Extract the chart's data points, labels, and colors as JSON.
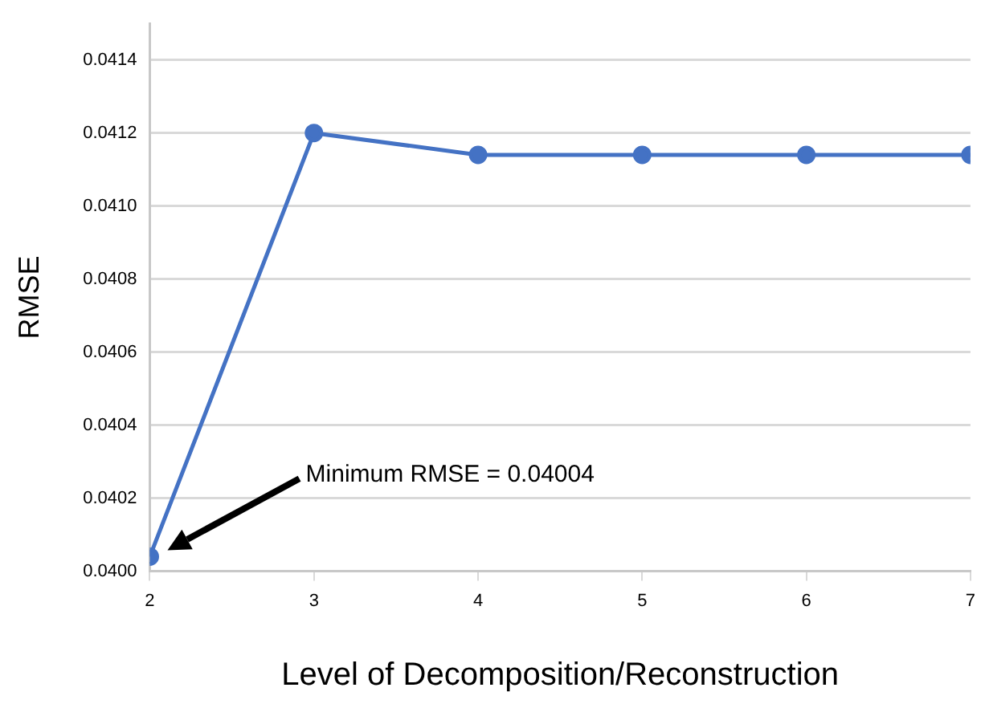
{
  "chart_data": {
    "type": "line",
    "xlabel": "Level of Decomposition/Reconstruction",
    "ylabel": "RMSE",
    "x": [
      2,
      3,
      4,
      5,
      6,
      7
    ],
    "series": [
      {
        "color": "#4472c4",
        "values": [
          0.04004,
          0.0412,
          0.04114,
          0.04114,
          0.04114,
          0.04114
        ]
      }
    ],
    "xlim": [
      2,
      7
    ],
    "xticks": [
      2,
      3,
      4,
      5,
      6,
      7
    ],
    "ylim": [
      0.04,
      0.0415
    ],
    "yticks": [
      {
        "value": 0.04,
        "label": "0.0400"
      },
      {
        "value": 0.0402,
        "label": "0.0402"
      },
      {
        "value": 0.0404,
        "label": "0.0404"
      },
      {
        "value": 0.0406,
        "label": "0.0406"
      },
      {
        "value": 0.0408,
        "label": "0.0408"
      },
      {
        "value": 0.041,
        "label": "0.0410"
      },
      {
        "value": 0.0412,
        "label": "0.0412"
      },
      {
        "value": 0.0414,
        "label": "0.0414"
      }
    ],
    "annotations": [
      "Minimum RMSE = 0.04004"
    ],
    "grid": "y",
    "legend": false,
    "marker": "circle",
    "line_style": "solid"
  }
}
